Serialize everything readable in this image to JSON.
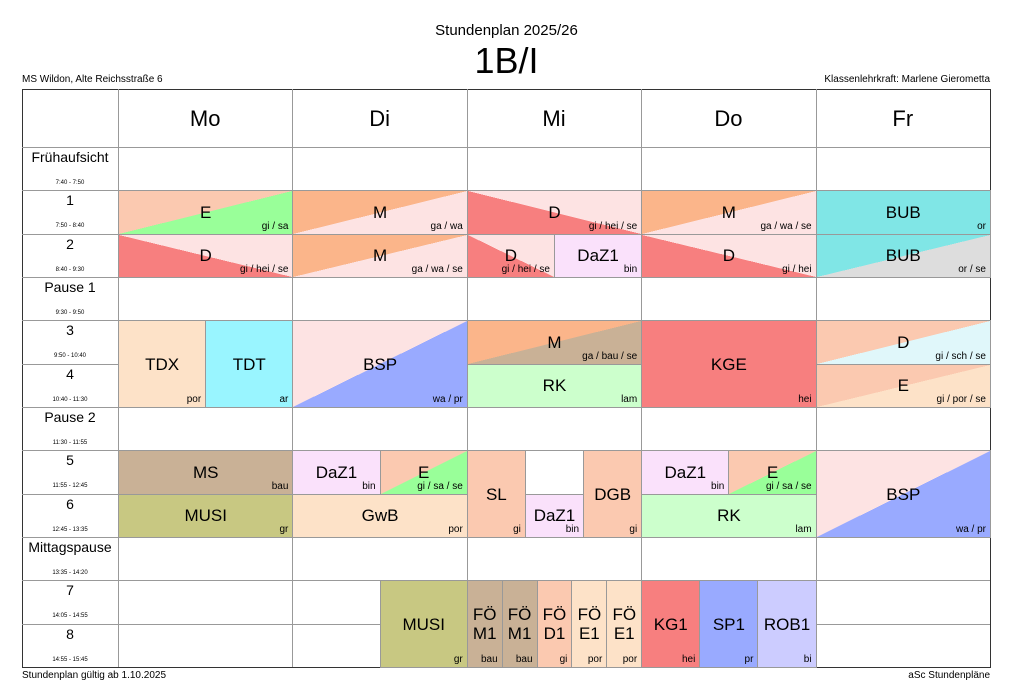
{
  "header": {
    "subtitle": "Stundenplan 2025/26",
    "title": "1B/I",
    "school": "MS Wildon, Alte Reichsstraße 6",
    "teacher": "Klassenlehrkraft: Marlene Gierometta"
  },
  "days": [
    "Mo",
    "Di",
    "Mi",
    "Do",
    "Fr"
  ],
  "periods": [
    {
      "label": "Frühaufsicht",
      "time": "7:40 - 7:50"
    },
    {
      "label": "1",
      "time": "7:50 - 8:40"
    },
    {
      "label": "2",
      "time": "8:40 - 9:30"
    },
    {
      "label": "Pause 1",
      "time": "9:30 - 9:50"
    },
    {
      "label": "3",
      "time": "9:50 - 10:40"
    },
    {
      "label": "4",
      "time": "10:40 - 11:30"
    },
    {
      "label": "Pause 2",
      "time": "11:30 - 11:55"
    },
    {
      "label": "5",
      "time": "11:55 - 12:45"
    },
    {
      "label": "6",
      "time": "12:45 - 13:35"
    },
    {
      "label": "Mittagspause",
      "time": "13:35 - 14:20"
    },
    {
      "label": "7",
      "time": "14:05 - 14:55"
    },
    {
      "label": "8",
      "time": "14:55 - 15:45"
    }
  ],
  "lessons": [
    {
      "subject": "E",
      "teacher": "gi / sa"
    },
    {
      "subject": "D",
      "teacher": "gi / hei / se"
    },
    {
      "subject": "TDX",
      "teacher": "por"
    },
    {
      "subject": "TDT",
      "teacher": "ar"
    },
    {
      "subject": "MS",
      "teacher": "bau"
    },
    {
      "subject": "MUSI",
      "teacher": "gr"
    },
    {
      "subject": "M",
      "teacher": "ga / wa"
    },
    {
      "subject": "M",
      "teacher": "ga / wa / se"
    },
    {
      "subject": "BSP",
      "teacher": "wa / pr"
    },
    {
      "subject": "DaZ1",
      "teacher": "bin"
    },
    {
      "subject": "E",
      "teacher": "gi / sa / se"
    },
    {
      "subject": "GwB",
      "teacher": "por"
    },
    {
      "subject": "MUSI",
      "teacher": "gr"
    },
    {
      "subject": "D",
      "teacher": "gi / hei / se"
    },
    {
      "subject": "D",
      "teacher": "gi / hei / se"
    },
    {
      "subject": "DaZ1",
      "teacher": "bin"
    },
    {
      "subject": "M",
      "teacher": "ga / bau / se"
    },
    {
      "subject": "RK",
      "teacher": "lam"
    },
    {
      "subject": "SL",
      "teacher": "gi"
    },
    {
      "subject": "DaZ1",
      "teacher": "bin"
    },
    {
      "subject": "DGB",
      "teacher": "gi"
    },
    {
      "subject": "FÖ M1",
      "teacher": "bau"
    },
    {
      "subject": "FÖ M1",
      "teacher": "bau"
    },
    {
      "subject": "FÖ D1",
      "teacher": "gi"
    },
    {
      "subject": "FÖ E1",
      "teacher": "por"
    },
    {
      "subject": "FÖ E1",
      "teacher": "por"
    },
    {
      "subject": "M",
      "teacher": "ga / wa / se"
    },
    {
      "subject": "D",
      "teacher": "gi / hei"
    },
    {
      "subject": "KGE",
      "teacher": "hei"
    },
    {
      "subject": "DaZ1",
      "teacher": "bin"
    },
    {
      "subject": "E",
      "teacher": "gi / sa / se"
    },
    {
      "subject": "RK",
      "teacher": "lam"
    },
    {
      "subject": "KG1",
      "teacher": "hei"
    },
    {
      "subject": "SP1",
      "teacher": "pr"
    },
    {
      "subject": "ROB1",
      "teacher": "bi"
    },
    {
      "subject": "BUB",
      "teacher": "or"
    },
    {
      "subject": "BUB",
      "teacher": "or / se"
    },
    {
      "subject": "D",
      "teacher": "gi / sch / se"
    },
    {
      "subject": "E",
      "teacher": "gi / por / se"
    },
    {
      "subject": "BSP",
      "teacher": "wa / pr"
    }
  ],
  "footer": {
    "left": "Stundenplan gültig ab 1.10.2025",
    "right": "aSc Stundenpläne"
  }
}
